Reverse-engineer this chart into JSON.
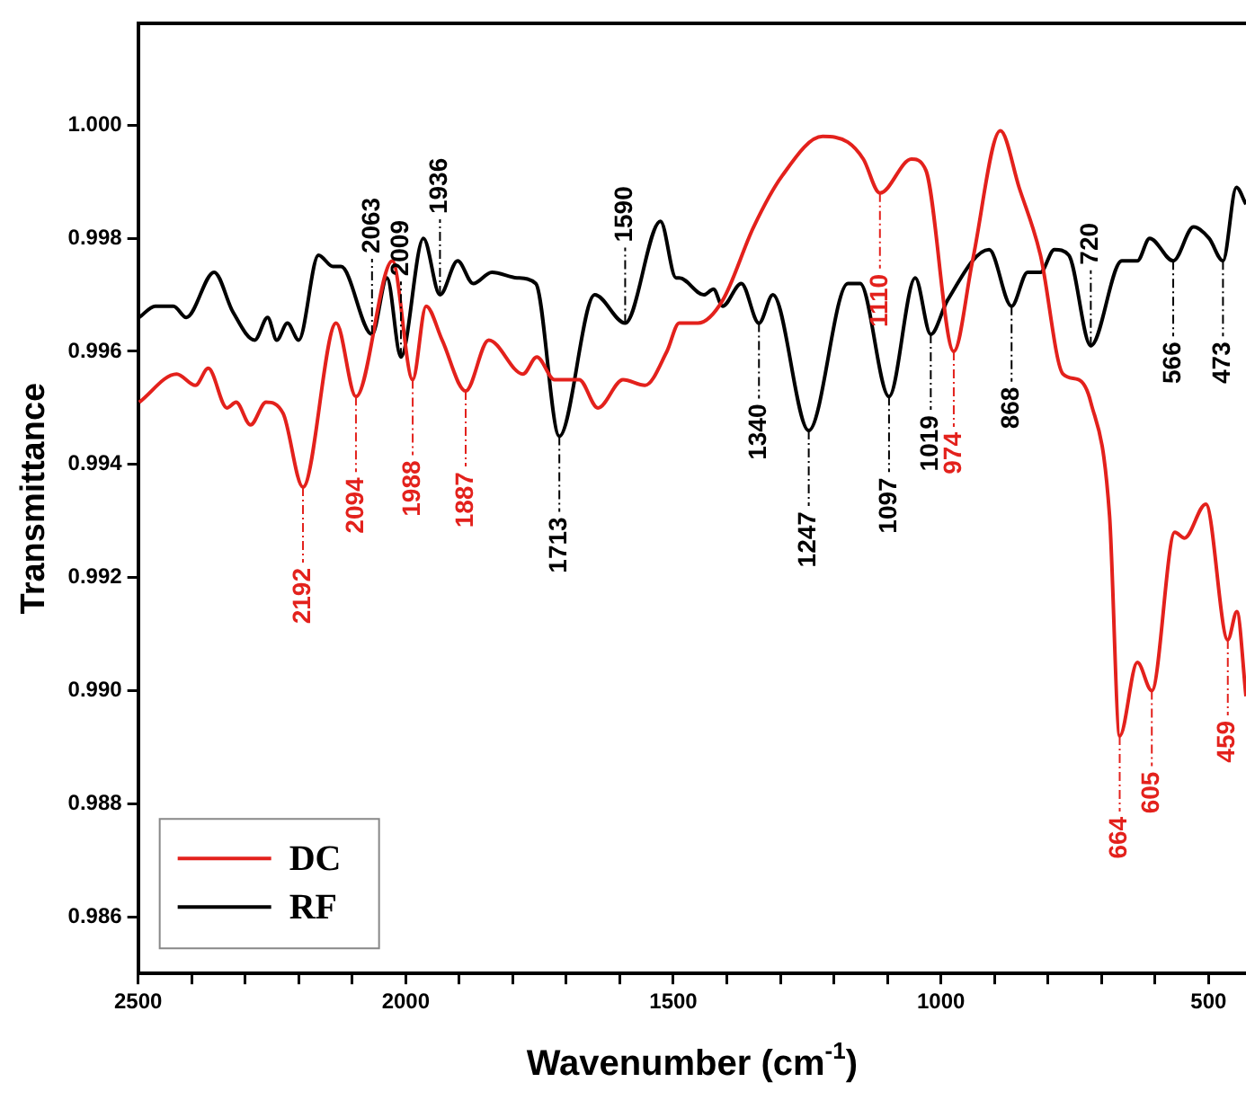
{
  "chart_data": {
    "type": "line",
    "xlabel": "Wavenumber (cm$^{-1}$)",
    "ylabel": "Transmittance",
    "xlim": [
      2500,
      430
    ],
    "xticks": [
      2500,
      {
        "value": 2400,
        "label": null
      },
      {
        "value": 2300,
        "label": null
      },
      {
        "value": 2200,
        "label": null
      },
      {
        "value": 2100,
        "label": null
      },
      2000,
      {
        "value": 1900,
        "label": null
      },
      {
        "value": 1800,
        "label": null
      },
      {
        "value": 1700,
        "label": null
      },
      {
        "value": 1600,
        "label": null
      },
      1500,
      {
        "value": 1400,
        "label": null
      },
      {
        "value": 1300,
        "label": null
      },
      {
        "value": 1200,
        "label": null
      },
      {
        "value": 1100,
        "label": null
      },
      1000,
      {
        "value": 900,
        "label": null
      },
      {
        "value": 800,
        "label": null
      },
      {
        "value": 700,
        "label": null
      },
      {
        "value": 600,
        "label": null
      },
      500
    ],
    "ylim": [
      0.985,
      1.0018
    ],
    "yticks": [
      {
        "value": 0.986,
        "label": "0.986"
      },
      {
        "value": 0.988,
        "label": "0.988"
      },
      {
        "value": 0.99,
        "label": "0.990"
      },
      {
        "value": 0.992,
        "label": "0.992"
      },
      {
        "value": 0.994,
        "label": "0.994"
      },
      {
        "value": 0.996,
        "label": "0.996"
      },
      {
        "value": 0.998,
        "label": "0.998"
      },
      {
        "value": 1.0,
        "label": "1.000"
      }
    ],
    "grid": false,
    "legend": "bottom left",
    "marker": "none",
    "line_style": "solid",
    "series": [
      {
        "name": "DC",
        "color": "#e3211c",
        "x": [
          2498,
          2428,
          2393,
          2369,
          2334,
          2317,
          2290,
          2261,
          2229,
          2192,
          2130,
          2093,
          2025,
          1987,
          1962,
          1932,
          1888,
          1845,
          1781,
          1755,
          1722,
          1676,
          1641,
          1594,
          1553,
          1512,
          1489,
          1454,
          1408,
          1350,
          1297,
          1221,
          1174,
          1145,
          1114,
          1055,
          1028,
          976,
          941,
          889,
          854,
          814,
          772,
          743,
          720,
          685,
          666,
          633,
          606,
          563,
          545,
          505,
          464,
          447,
          430
        ],
        "values": [
          0.9951,
          0.9956,
          0.9954,
          0.9957,
          0.995,
          0.9951,
          0.9947,
          0.9951,
          0.9949,
          0.9936,
          0.9965,
          0.9952,
          0.9976,
          0.9955,
          0.9968,
          0.9962,
          0.9953,
          0.9962,
          0.9956,
          0.9959,
          0.9955,
          0.9955,
          0.995,
          0.9955,
          0.9954,
          0.996,
          0.9965,
          0.9965,
          0.9969,
          0.9982,
          0.9991,
          0.9998,
          0.9997,
          0.9994,
          0.9988,
          0.9994,
          0.9992,
          0.996,
          0.9976,
          0.9999,
          0.9989,
          0.9977,
          0.9956,
          0.9955,
          0.9951,
          0.9931,
          0.9892,
          0.9905,
          0.99,
          0.9928,
          0.9927,
          0.9933,
          0.9909,
          0.9914,
          0.9899
        ]
      },
      {
        "name": "RF",
        "color": "#000000",
        "x": [
          2498,
          2468,
          2434,
          2410,
          2358,
          2323,
          2282,
          2258,
          2241,
          2221,
          2200,
          2163,
          2136,
          2121,
          2063,
          2035,
          2009,
          1967,
          1936,
          1903,
          1874,
          1839,
          1792,
          1757,
          1713,
          1647,
          1590,
          1524,
          1495,
          1489,
          1443,
          1425,
          1408,
          1373,
          1340,
          1314,
          1247,
          1174,
          1151,
          1097,
          1048,
          1019,
          988,
          910,
          868,
          838,
          814,
          788,
          761,
          720,
          662,
          633,
          610,
          566,
          528,
          499,
          473,
          448,
          430
        ],
        "values": [
          0.9966,
          0.9968,
          0.9968,
          0.9966,
          0.9974,
          0.9967,
          0.9962,
          0.9966,
          0.9962,
          0.9965,
          0.9962,
          0.9977,
          0.9975,
          0.9975,
          0.9963,
          0.9973,
          0.9959,
          0.998,
          0.997,
          0.9976,
          0.9972,
          0.9974,
          0.9973,
          0.9972,
          0.9945,
          0.997,
          0.9965,
          0.9983,
          0.9973,
          0.9973,
          0.997,
          0.9971,
          0.9968,
          0.9972,
          0.9965,
          0.997,
          0.9946,
          0.9972,
          0.9972,
          0.9952,
          0.9973,
          0.9963,
          0.9969,
          0.9978,
          0.9968,
          0.9974,
          0.9974,
          0.9978,
          0.9977,
          0.9961,
          0.9976,
          0.9976,
          0.998,
          0.9976,
          0.9982,
          0.998,
          0.9976,
          0.9989,
          0.9986
        ]
      }
    ],
    "annotations": [
      {
        "text": "2192",
        "x": 2192,
        "y": 0.9936
      },
      {
        "text": "2094",
        "x": 2093,
        "y": 0.9952
      },
      {
        "text": "2063",
        "x": 2063,
        "y": 0.9963
      },
      {
        "text": "2009",
        "x": 2009,
        "y": 0.9959
      },
      {
        "text": "1988",
        "x": 1987,
        "y": 0.9955
      },
      {
        "text": "1936",
        "x": 1936,
        "y": 0.997
      },
      {
        "text": "1887",
        "x": 1888,
        "y": 0.9953
      },
      {
        "text": "1713",
        "x": 1713,
        "y": 0.9945
      },
      {
        "text": "1590",
        "x": 1590,
        "y": 0.9965
      },
      {
        "text": "1340",
        "x": 1340,
        "y": 0.9965
      },
      {
        "text": "1247",
        "x": 1247,
        "y": 0.9946
      },
      {
        "text": "1110",
        "x": 1114,
        "y": 0.9988
      },
      {
        "text": "1097",
        "x": 1097,
        "y": 0.9952
      },
      {
        "text": "1019",
        "x": 1019,
        "y": 0.9963
      },
      {
        "text": "974",
        "x": 976,
        "y": 0.996
      },
      {
        "text": "868",
        "x": 868,
        "y": 0.9968
      },
      {
        "text": "720",
        "x": 720,
        "y": 0.9961
      },
      {
        "text": "664",
        "x": 666,
        "y": 0.9892
      },
      {
        "text": "605",
        "x": 606,
        "y": 0.99
      },
      {
        "text": "566",
        "x": 566,
        "y": 0.9976
      },
      {
        "text": "473",
        "x": 473,
        "y": 0.9976
      },
      {
        "text": "459",
        "x": 464,
        "y": 0.9909
      }
    ]
  }
}
